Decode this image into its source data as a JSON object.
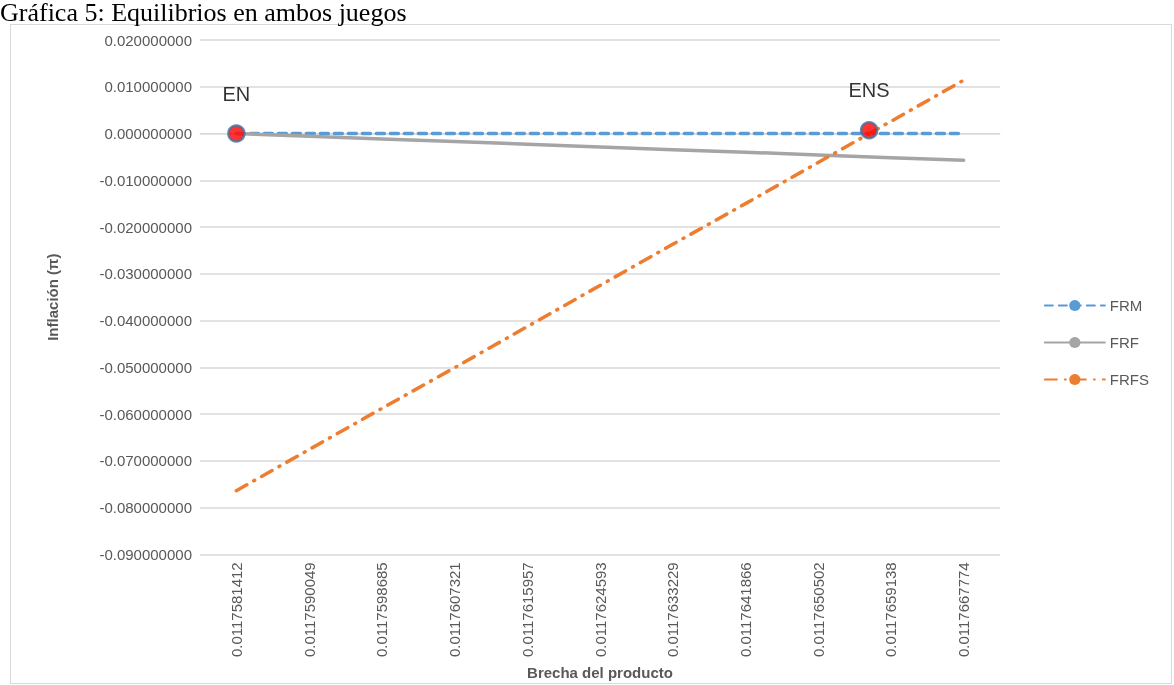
{
  "chart_data": {
    "type": "line",
    "title": "Gráfica 5: Equilibrios en ambos juegos",
    "xlabel": "Brecha del producto",
    "ylabel": "Inflación (π)",
    "x": [
      0.0117581412,
      0.0117590049,
      0.0117598685,
      0.0117607321,
      0.0117615957,
      0.0117624593,
      0.0117633229,
      0.0117641866,
      0.0117650502,
      0.0117659138,
      0.0117667774
    ],
    "series": [
      {
        "name": "FRM",
        "color": "#5b9bd5",
        "line_style": "dashed",
        "values": [
          0,
          0,
          0,
          0,
          0,
          0,
          0,
          0,
          0,
          0,
          0
        ]
      },
      {
        "name": "FRF",
        "color": "#a5a5a5",
        "line_style": "solid",
        "values": [
          0,
          -0.0006,
          -0.0012,
          -0.0017,
          -0.0023,
          -0.0029,
          -0.0035,
          -0.004,
          -0.0046,
          -0.0052,
          -0.0057
        ]
      },
      {
        "name": "FRFS",
        "color": "#ed7d31",
        "line_style": "dashdot",
        "values": [
          -0.0764,
          -0.0676,
          -0.0588,
          -0.0501,
          -0.0413,
          -0.0325,
          -0.0237,
          -0.015,
          -0.0062,
          0.0026,
          0.0114
        ]
      },
      {
        "type": "scatter",
        "color": "#ff0000",
        "marker": "circle",
        "x": [
          0.0117581412,
          0.0117656547
        ],
        "values": [
          0,
          0.0007
        ]
      }
    ],
    "annotations": [
      {
        "text": "EN",
        "x": 0.0117581412,
        "y": 0
      },
      {
        "text": "ENS",
        "x": 0.0117656547,
        "y": 0.0007
      }
    ],
    "xlim": [
      0.0117577094,
      0.0117672092
    ],
    "xticks": [
      0.0117581412,
      0.0117590049,
      0.0117598685,
      0.0117607321,
      0.0117615957,
      0.0117624593,
      0.0117633229,
      0.0117641866,
      0.0117650502,
      0.0117659138,
      0.0117667774
    ],
    "ylim": [
      -0.09,
      0.02
    ],
    "yticks": [
      {
        "value": -0.09,
        "label": "-0.090000000"
      },
      {
        "value": -0.08,
        "label": "-0.080000000"
      },
      {
        "value": -0.07,
        "label": "-0.070000000"
      },
      {
        "value": -0.06,
        "label": "-0.060000000"
      },
      {
        "value": -0.05,
        "label": "-0.050000000"
      },
      {
        "value": -0.04,
        "label": "-0.040000000"
      },
      {
        "value": -0.03,
        "label": "-0.030000000"
      },
      {
        "value": -0.02,
        "label": "-0.020000000"
      },
      {
        "value": -0.01,
        "label": "-0.010000000"
      },
      {
        "value": 0,
        "label": "0.000000000"
      },
      {
        "value": 0.01,
        "label": "0.010000000"
      },
      {
        "value": 0.02,
        "label": "0.020000000"
      }
    ],
    "grid": "y",
    "legend": "right",
    "marker": "none"
  }
}
